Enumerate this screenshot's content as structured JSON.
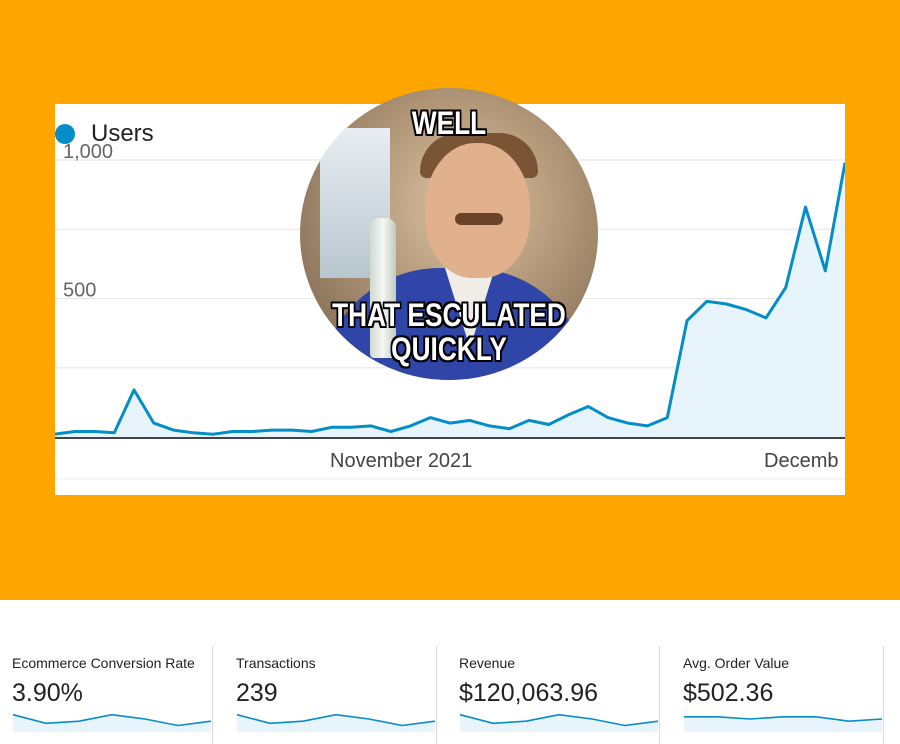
{
  "chart_data": {
    "type": "area",
    "series": [
      {
        "name": "Users",
        "values": [
          10,
          20,
          20,
          15,
          170,
          50,
          25,
          15,
          10,
          20,
          20,
          25,
          25,
          20,
          35,
          35,
          40,
          20,
          40,
          70,
          50,
          60,
          40,
          30,
          60,
          45,
          80,
          110,
          70,
          50,
          40,
          70,
          420,
          490,
          480,
          460,
          430,
          540,
          830,
          600,
          990
        ]
      }
    ],
    "xticks": [
      "November 2021",
      "Decemb"
    ],
    "yticks": [
      1000,
      500
    ],
    "ytick_labels": [
      "1,000",
      "500"
    ],
    "ylim": [
      0,
      1000
    ],
    "grid": true,
    "legend": "top-left",
    "color": "#058DC7"
  },
  "meme": {
    "top_text": "WELL",
    "bottom_text_line1": "THAT ESCULATED",
    "bottom_text_line2": "QUICKLY"
  },
  "metrics": [
    {
      "label": "Ecommerce Conversion Rate",
      "value": "3.90%",
      "spark": [
        8,
        4,
        5,
        8,
        6,
        3,
        5
      ]
    },
    {
      "label": "Transactions",
      "value": "239",
      "spark": [
        8,
        4,
        5,
        8,
        6,
        3,
        5
      ]
    },
    {
      "label": "Revenue",
      "value": "$120,063.96",
      "spark": [
        8,
        4,
        5,
        8,
        6,
        3,
        5
      ]
    },
    {
      "label": "Avg. Order Value",
      "value": "$502.36",
      "spark": [
        7,
        7,
        6,
        7,
        7,
        5,
        6
      ]
    }
  ],
  "colors": {
    "background": "#FFA500",
    "line": "#058DC7",
    "fill": "#E8F4FB"
  }
}
